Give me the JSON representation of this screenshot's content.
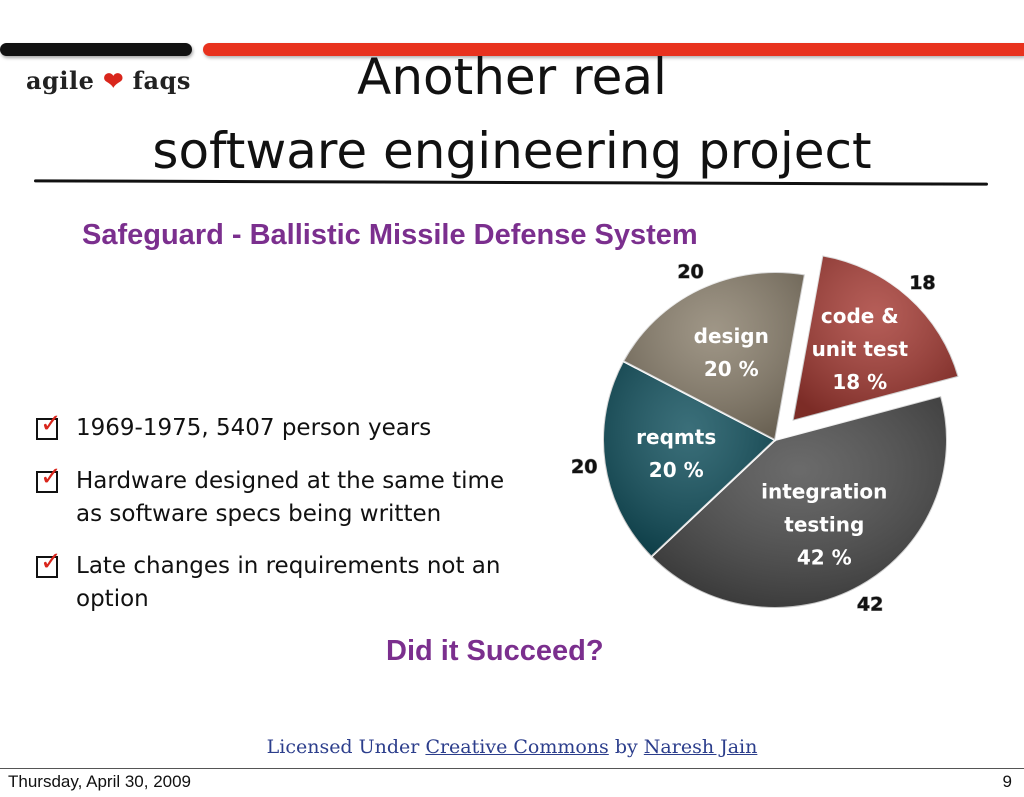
{
  "header": {
    "logo_left": "agile",
    "logo_right": "faqs",
    "title_line1": "Another real",
    "title_line2": "software engineering project"
  },
  "subtitle": "Safeguard - Ballistic Missile Defense System",
  "bullets": [
    "1969-1975, 5407 person years",
    "Hardware designed at the same time as software specs being written",
    "Late changes in requirements not an option"
  ],
  "question": "Did it Succeed?",
  "license": {
    "prefix": "Licensed Under",
    "link1": "Creative Commons",
    "middle": "by",
    "link2": "Naresh Jain"
  },
  "footer": {
    "date": "Thursday, April 30, 2009",
    "page": "9"
  },
  "colors": {
    "accent_red": "#e8321e",
    "purple": "#7b2f8e"
  },
  "chart_data": {
    "type": "pie",
    "slices": [
      {
        "label": [
          "code &",
          "unit test",
          "18 %"
        ],
        "value": 18,
        "outer_label": "18",
        "color": "#a53a33",
        "exploded": true
      },
      {
        "label": [
          "integration",
          "testing",
          "42 %"
        ],
        "value": 42,
        "outer_label": "42",
        "color": "#4a4a4a",
        "exploded": false
      },
      {
        "label": [
          "reqmts",
          "20 %"
        ],
        "value": 20,
        "outer_label": "20",
        "color": "#0f4f5c",
        "exploded": false
      },
      {
        "label": [
          "design",
          "20 %"
        ],
        "value": 20,
        "outer_label": "20",
        "color": "#8a7f6c",
        "exploded": false
      }
    ]
  }
}
